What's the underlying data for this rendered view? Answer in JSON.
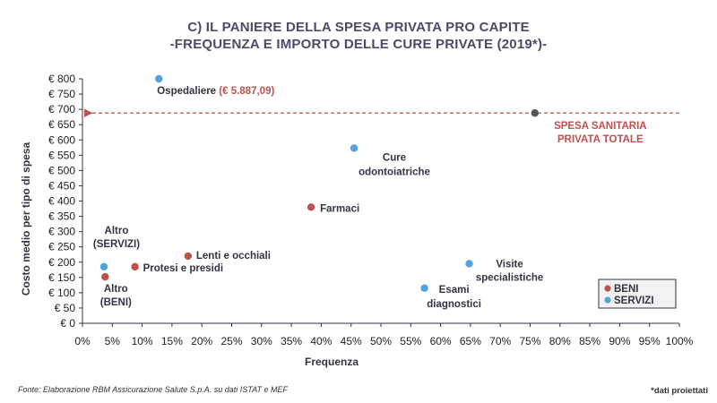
{
  "title_line1": "C) IL PANIERE DELLA SPESA PRIVATA PRO CAPITE",
  "title_line2": "-FREQUENZA E IMPORTO DELLE CURE PRIVATE (2019*)-",
  "source": "Fonte: Elaborazione RBM Assicurazione Salute S.p.A. su dati ISTAT e MEF",
  "footnote": "*dati proiettati",
  "colors": {
    "beni": "#c0504d",
    "servizi": "#4fa3e0",
    "totale": "#55555f",
    "totale_label": "#c0504d",
    "axis": "#333344"
  },
  "chart_data": {
    "type": "scatter",
    "xlabel": "Frequenza",
    "ylabel": "Costo medio per tipo di spesa",
    "xlim": [
      0,
      100
    ],
    "ylim": [
      0,
      800
    ],
    "x_ticks": [
      "0%",
      "5%",
      "10%",
      "15%",
      "20%",
      "25%",
      "30%",
      "35%",
      "40%",
      "45%",
      "50%",
      "55%",
      "60%",
      "65%",
      "70%",
      "75%",
      "80%",
      "85%",
      "90%",
      "95%",
      "100%"
    ],
    "y_ticks": [
      "€ 0",
      "€ 50",
      "€ 100",
      "€ 150",
      "€ 200",
      "€ 250",
      "€ 300",
      "€ 350",
      "€ 400",
      "€ 450",
      "€ 500",
      "€ 550",
      "€ 600",
      "€ 650",
      "€ 700",
      "€ 750",
      "€ 800"
    ],
    "grid": false,
    "legend": {
      "position": "bottom-right",
      "entries": [
        {
          "label": "BENI",
          "series": "beni"
        },
        {
          "label": "SERVIZI",
          "series": "servizi"
        }
      ]
    },
    "series": [
      {
        "name": "BENI",
        "key": "beni",
        "points": [
          {
            "label": [
              "Altro",
              "(BENI)"
            ],
            "x": 3.8,
            "y": 152
          },
          {
            "label": [
              "Protesi e presidi"
            ],
            "x": 8.8,
            "y": 185
          },
          {
            "label": [
              "Lenti e occhiali"
            ],
            "x": 17.7,
            "y": 220
          },
          {
            "label": [
              "Farmaci"
            ],
            "x": 38.3,
            "y": 380
          }
        ]
      },
      {
        "name": "SERVIZI",
        "key": "servizi",
        "points": [
          {
            "label": [
              "Altro",
              "(SERVIZI)"
            ],
            "x": 3.6,
            "y": 185
          },
          {
            "label": [
              "Ospedaliere"
            ],
            "extra": "(€ 5.887,09)",
            "x": 12.8,
            "y": 800
          },
          {
            "label": [
              "Cure",
              "odontoiatriche"
            ],
            "x": 45.5,
            "y": 573
          },
          {
            "label": [
              "Esami",
              "diagnostici"
            ],
            "x": 57.3,
            "y": 115
          },
          {
            "label": [
              "Visite",
              "specialistiche"
            ],
            "x": 64.8,
            "y": 195
          }
        ]
      },
      {
        "name": "SPESA SANITARIA PRIVATA TOTALE",
        "key": "totale",
        "points": [
          {
            "label": [
              "SPESA SANITARIA",
              "PRIVATA TOTALE"
            ],
            "x": 75.8,
            "y": 688
          }
        ]
      }
    ],
    "reference_line": {
      "y": 688,
      "style": "dashed",
      "arrow": "left"
    }
  }
}
